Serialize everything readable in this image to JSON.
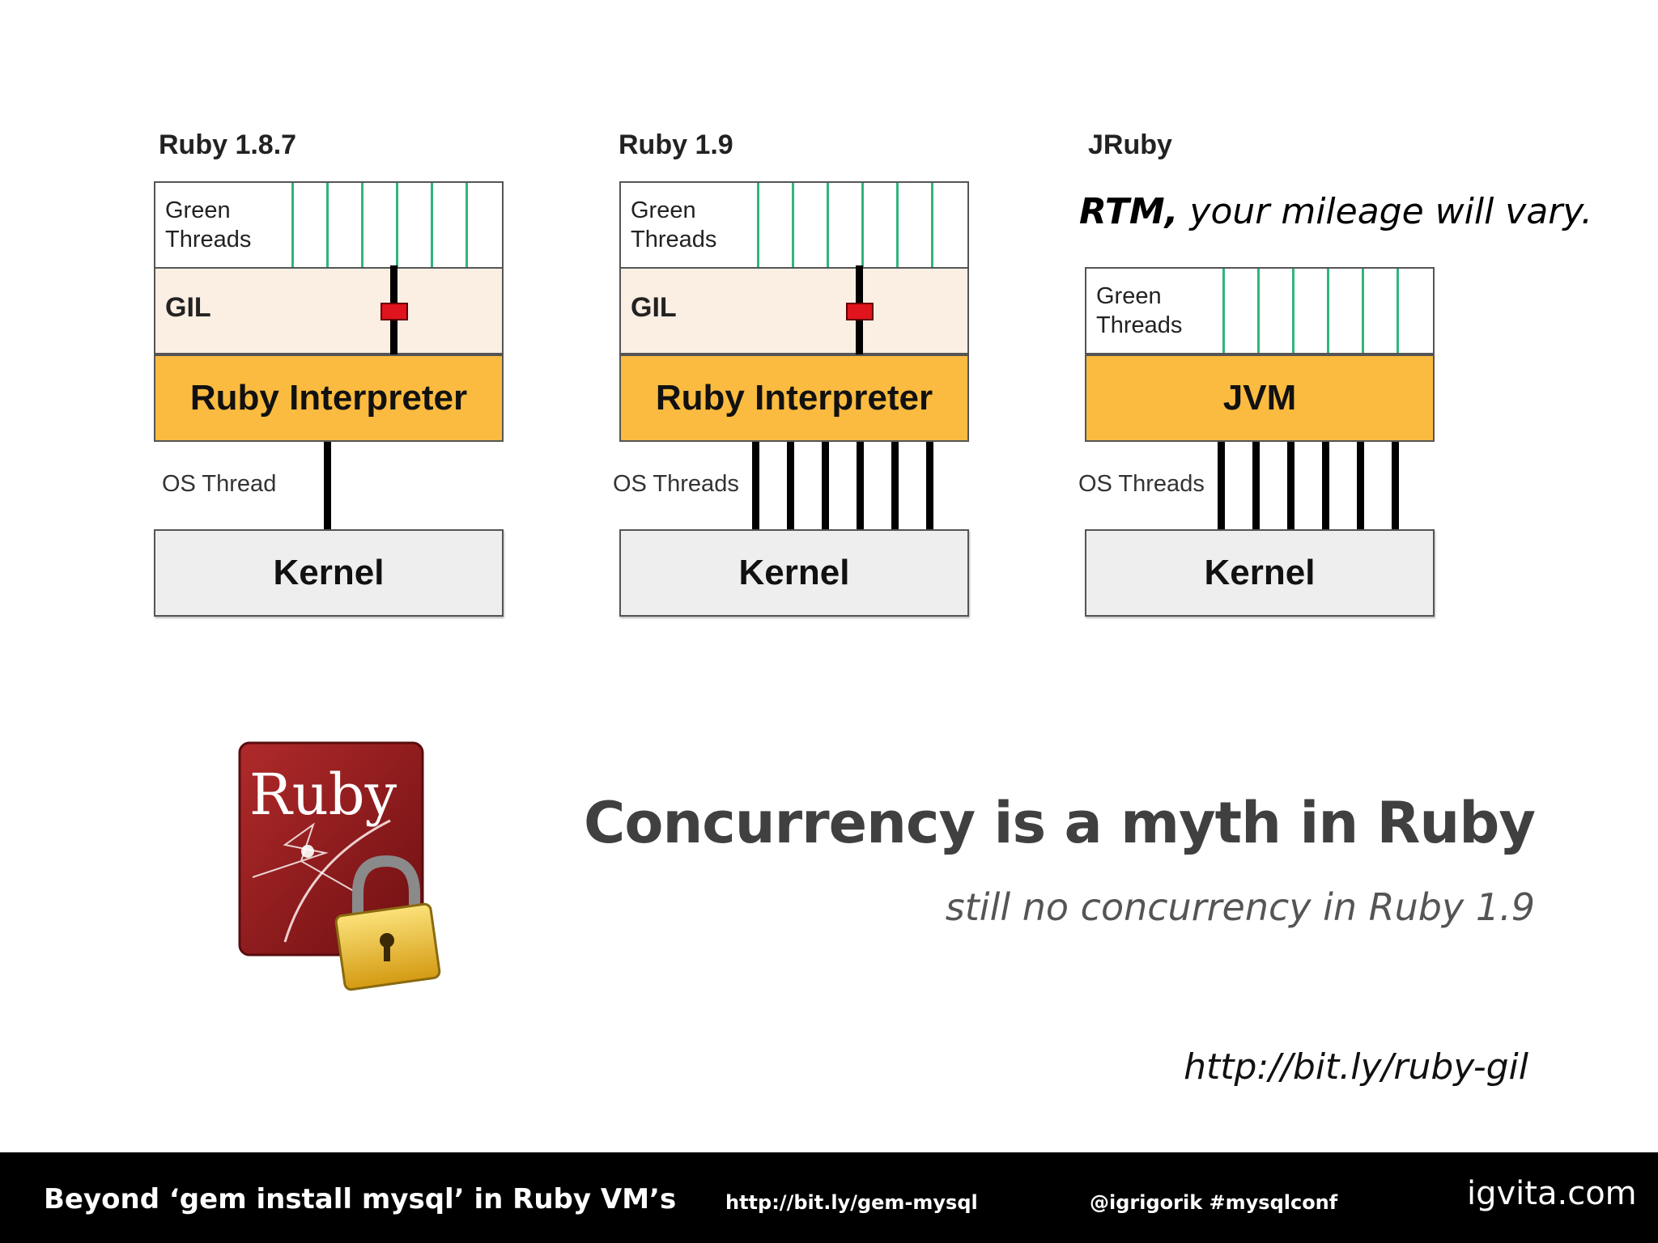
{
  "diagrams": [
    {
      "title": "Ruby 1.8.7",
      "green_label": "Green Threads",
      "gil_label": "GIL",
      "interpreter_label": "Ruby Interpreter",
      "os_label": "OS Thread",
      "kernel_label": "Kernel"
    },
    {
      "title": "Ruby 1.9",
      "green_label": "Green Threads",
      "gil_label": "GIL",
      "interpreter_label": "Ruby Interpreter",
      "os_label": "OS Threads",
      "kernel_label": "Kernel"
    },
    {
      "title": "JRuby",
      "green_label": "Green Threads",
      "interpreter_label": "JVM",
      "os_label": "OS Threads",
      "kernel_label": "Kernel"
    }
  ],
  "note": {
    "bold": "RTM,",
    "rest": " your mileage will vary."
  },
  "headline": "Concurrency is a myth in Ruby",
  "subline": "still no concurrency in Ruby 1.9",
  "link": "http://bit.ly/ruby-gil",
  "logo_text": "Ruby",
  "footer": {
    "title": "Beyond ‘gem install mysql’ in Ruby VM’s",
    "link": "http://bit.ly/gem-mysql",
    "tags": "@igrigorik #mysqlconf",
    "brand": "igvita.com"
  },
  "colors": {
    "interpreter": "#fbbb40",
    "gil_bg": "#fbeee2",
    "green_thread": "#2fb67a",
    "lock": "#e0141c",
    "footer_bg": "#000000"
  }
}
